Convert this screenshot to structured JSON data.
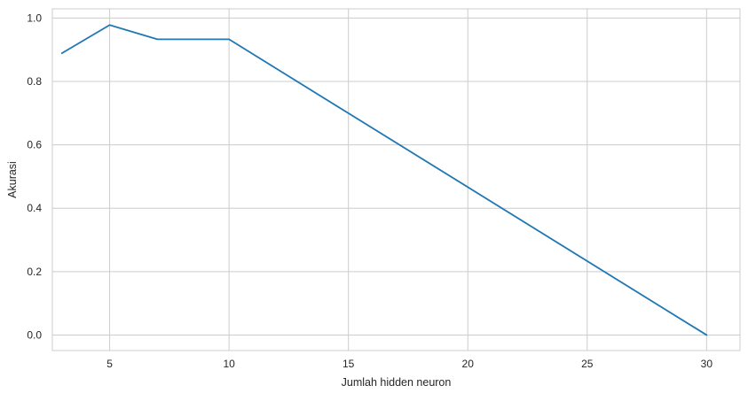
{
  "chart_data": {
    "type": "line",
    "title": "",
    "xlabel": "Jumlah hidden neuron",
    "ylabel": "Akurasi",
    "xlim": [
      2.6,
      31.4
    ],
    "ylim": [
      -0.049,
      1.029
    ],
    "x_ticks": [
      5,
      10,
      15,
      20,
      25,
      30
    ],
    "y_ticks": [
      0.0,
      0.2,
      0.4,
      0.6,
      0.8,
      1.0
    ],
    "x_tick_labels": [
      "5",
      "10",
      "15",
      "20",
      "25",
      "30"
    ],
    "y_tick_labels": [
      "0.0",
      "0.2",
      "0.4",
      "0.6",
      "0.8",
      "1.0"
    ],
    "grid": true,
    "series": [
      {
        "color": "#1f77b4",
        "x": [
          3,
          5,
          7,
          10,
          30
        ],
        "y": [
          0.889,
          0.978,
          0.933,
          0.933,
          0.0
        ]
      }
    ]
  }
}
